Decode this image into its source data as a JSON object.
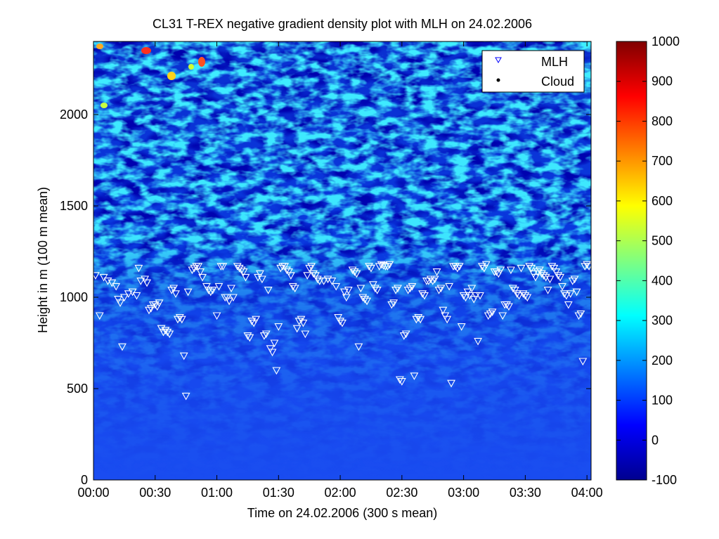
{
  "chart_data": {
    "type": "heatmap",
    "title": "CL31 T-REX negative gradient density plot with MLH on 24.02.2006",
    "xlabel": "Time on 24.02.2006 (300 s mean)",
    "ylabel": "Height in m (100 m mean)",
    "xlim_minutes": [
      0,
      242
    ],
    "ylim": [
      0,
      2400
    ],
    "x_ticks": [
      {
        "minutes": 0,
        "label": "00:00"
      },
      {
        "minutes": 30,
        "label": "00:30"
      },
      {
        "minutes": 60,
        "label": "01:00"
      },
      {
        "minutes": 90,
        "label": "01:30"
      },
      {
        "minutes": 120,
        "label": "02:00"
      },
      {
        "minutes": 150,
        "label": "02:30"
      },
      {
        "minutes": 180,
        "label": "03:00"
      },
      {
        "minutes": 210,
        "label": "03:30"
      },
      {
        "minutes": 240,
        "label": "04:00"
      }
    ],
    "y_ticks": [
      0,
      500,
      1000,
      1500,
      2000
    ],
    "colorbar": {
      "colormap": "jet",
      "range": [
        -100,
        1000
      ],
      "ticks": [
        -100,
        0,
        100,
        200,
        300,
        400,
        500,
        600,
        700,
        800,
        900,
        1000
      ]
    },
    "legend": {
      "placement": "top-right",
      "entries": [
        {
          "label": "MLH",
          "marker": "triangle-down",
          "color": "#0000ff"
        },
        {
          "label": "Cloud",
          "marker": "dot",
          "color": "#000000"
        }
      ]
    },
    "series": [
      {
        "name": "MLH",
        "marker": "triangle-down",
        "color": "#ffffff",
        "points": [
          [
            1,
            1120
          ],
          [
            3,
            900
          ],
          [
            5,
            1110
          ],
          [
            7,
            1090
          ],
          [
            9,
            1080
          ],
          [
            11,
            1060
          ],
          [
            12,
            990
          ],
          [
            13,
            970
          ],
          [
            14,
            730
          ],
          [
            15,
            1000
          ],
          [
            17,
            1020
          ],
          [
            19,
            1030
          ],
          [
            21,
            1010
          ],
          [
            22,
            1160
          ],
          [
            23,
            1090
          ],
          [
            25,
            1100
          ],
          [
            26,
            1080
          ],
          [
            27,
            930
          ],
          [
            28,
            940
          ],
          [
            29,
            960
          ],
          [
            30,
            960
          ],
          [
            31,
            950
          ],
          [
            32,
            970
          ],
          [
            33,
            830
          ],
          [
            34,
            810
          ],
          [
            35,
            820
          ],
          [
            36,
            810
          ],
          [
            37,
            800
          ],
          [
            38,
            1040
          ],
          [
            39,
            1050
          ],
          [
            40,
            1020
          ],
          [
            41,
            880
          ],
          [
            42,
            890
          ],
          [
            43,
            880
          ],
          [
            44,
            680
          ],
          [
            45,
            460
          ],
          [
            46,
            1030
          ],
          [
            48,
            1150
          ],
          [
            49,
            1160
          ],
          [
            50,
            1170
          ],
          [
            51,
            1170
          ],
          [
            52,
            1140
          ],
          [
            53,
            1110
          ],
          [
            55,
            1060
          ],
          [
            56,
            1040
          ],
          [
            57,
            1030
          ],
          [
            58,
            1040
          ],
          [
            60,
            900
          ],
          [
            61,
            1060
          ],
          [
            62,
            1170
          ],
          [
            63,
            1170
          ],
          [
            64,
            1000
          ],
          [
            65,
            1000
          ],
          [
            66,
            980
          ],
          [
            67,
            1050
          ],
          [
            68,
            1000
          ],
          [
            70,
            1170
          ],
          [
            71,
            1160
          ],
          [
            72,
            1150
          ],
          [
            73,
            1140
          ],
          [
            74,
            1110
          ],
          [
            75,
            790
          ],
          [
            76,
            780
          ],
          [
            77,
            870
          ],
          [
            78,
            860
          ],
          [
            79,
            880
          ],
          [
            80,
            1110
          ],
          [
            81,
            1130
          ],
          [
            82,
            1100
          ],
          [
            83,
            790
          ],
          [
            84,
            800
          ],
          [
            85,
            1040
          ],
          [
            86,
            720
          ],
          [
            87,
            700
          ],
          [
            88,
            750
          ],
          [
            89,
            600
          ],
          [
            90,
            840
          ],
          [
            91,
            1160
          ],
          [
            92,
            1170
          ],
          [
            93,
            1170
          ],
          [
            94,
            1150
          ],
          [
            95,
            1140
          ],
          [
            96,
            1120
          ],
          [
            97,
            1060
          ],
          [
            98,
            1050
          ],
          [
            99,
            830
          ],
          [
            100,
            870
          ],
          [
            101,
            880
          ],
          [
            102,
            860
          ],
          [
            103,
            800
          ],
          [
            104,
            1120
          ],
          [
            105,
            1160
          ],
          [
            106,
            1170
          ],
          [
            107,
            1130
          ],
          [
            108,
            1120
          ],
          [
            109,
            1100
          ],
          [
            110,
            1090
          ],
          [
            112,
            1090
          ],
          [
            114,
            1100
          ],
          [
            116,
            1090
          ],
          [
            118,
            1060
          ],
          [
            119,
            890
          ],
          [
            120,
            870
          ],
          [
            121,
            860
          ],
          [
            122,
            1030
          ],
          [
            123,
            1000
          ],
          [
            124,
            1040
          ],
          [
            126,
            1150
          ],
          [
            127,
            1140
          ],
          [
            128,
            1130
          ],
          [
            129,
            730
          ],
          [
            130,
            1050
          ],
          [
            131,
            1000
          ],
          [
            132,
            990
          ],
          [
            133,
            980
          ],
          [
            134,
            1170
          ],
          [
            135,
            1160
          ],
          [
            136,
            1070
          ],
          [
            137,
            1050
          ],
          [
            138,
            1040
          ],
          [
            139,
            1170
          ],
          [
            140,
            1180
          ],
          [
            141,
            1175
          ],
          [
            142,
            1170
          ],
          [
            143,
            1170
          ],
          [
            144,
            1180
          ],
          [
            145,
            960
          ],
          [
            146,
            970
          ],
          [
            147,
            1040
          ],
          [
            148,
            1050
          ],
          [
            149,
            550
          ],
          [
            150,
            540
          ],
          [
            151,
            790
          ],
          [
            152,
            800
          ],
          [
            153,
            1040
          ],
          [
            154,
            1050
          ],
          [
            155,
            1060
          ],
          [
            156,
            570
          ],
          [
            157,
            880
          ],
          [
            158,
            890
          ],
          [
            159,
            880
          ],
          [
            160,
            1020
          ],
          [
            161,
            1010
          ],
          [
            162,
            1090
          ],
          [
            163,
            1090
          ],
          [
            164,
            1100
          ],
          [
            165,
            1090
          ],
          [
            166,
            1100
          ],
          [
            167,
            1140
          ],
          [
            168,
            1040
          ],
          [
            169,
            1050
          ],
          [
            170,
            930
          ],
          [
            171,
            900
          ],
          [
            172,
            880
          ],
          [
            173,
            1060
          ],
          [
            174,
            530
          ],
          [
            175,
            1170
          ],
          [
            176,
            1170
          ],
          [
            177,
            1160
          ],
          [
            178,
            1170
          ],
          [
            179,
            840
          ],
          [
            180,
            1010
          ],
          [
            181,
            1000
          ],
          [
            182,
            1030
          ],
          [
            183,
            1010
          ],
          [
            184,
            1050
          ],
          [
            185,
            990
          ],
          [
            186,
            1010
          ],
          [
            187,
            760
          ],
          [
            188,
            1010
          ],
          [
            189,
            1170
          ],
          [
            190,
            1160
          ],
          [
            191,
            1180
          ],
          [
            192,
            900
          ],
          [
            193,
            910
          ],
          [
            194,
            920
          ],
          [
            195,
            1140
          ],
          [
            196,
            1140
          ],
          [
            197,
            1130
          ],
          [
            198,
            1150
          ],
          [
            199,
            900
          ],
          [
            200,
            960
          ],
          [
            201,
            960
          ],
          [
            202,
            950
          ],
          [
            203,
            1150
          ],
          [
            204,
            1050
          ],
          [
            205,
            1040
          ],
          [
            206,
            1020
          ],
          [
            207,
            1010
          ],
          [
            208,
            1160
          ],
          [
            209,
            1020
          ],
          [
            210,
            1010
          ],
          [
            211,
            1000
          ],
          [
            212,
            1170
          ],
          [
            213,
            1160
          ],
          [
            214,
            1130
          ],
          [
            215,
            1110
          ],
          [
            216,
            1140
          ],
          [
            217,
            1150
          ],
          [
            218,
            1130
          ],
          [
            219,
            1120
          ],
          [
            220,
            1110
          ],
          [
            221,
            1040
          ],
          [
            222,
            1100
          ],
          [
            223,
            1170
          ],
          [
            224,
            1160
          ],
          [
            225,
            1140
          ],
          [
            226,
            1120
          ],
          [
            227,
            1110
          ],
          [
            228,
            1060
          ],
          [
            229,
            1020
          ],
          [
            230,
            1010
          ],
          [
            231,
            960
          ],
          [
            232,
            1020
          ],
          [
            233,
            1090
          ],
          [
            234,
            1100
          ],
          [
            235,
            1030
          ],
          [
            236,
            900
          ],
          [
            237,
            910
          ],
          [
            238,
            650
          ],
          [
            239,
            1170
          ],
          [
            240,
            1180
          ],
          [
            241,
            1170
          ]
        ]
      },
      {
        "name": "Cloud",
        "marker": "dot",
        "color": "#000000",
        "points": []
      }
    ]
  }
}
